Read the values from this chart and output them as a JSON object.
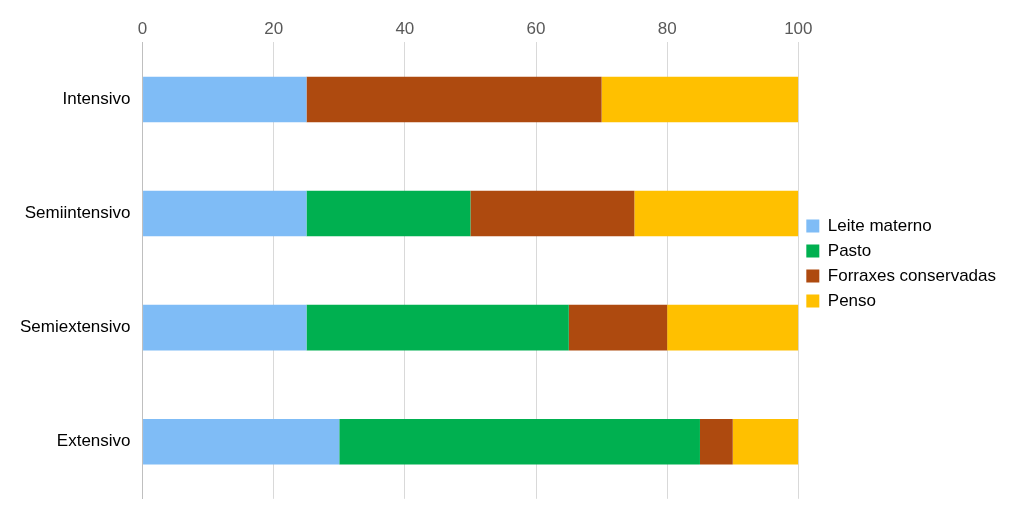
{
  "chart_data": {
    "type": "bar",
    "orientation": "horizontal",
    "stacked": true,
    "categories": [
      "Intensivo",
      "Semiintensivo",
      "Semiextensivo",
      "Extensivo"
    ],
    "series": [
      {
        "name": "Leite materno",
        "color": "#7fbcf6",
        "values": [
          25,
          25,
          25,
          30
        ]
      },
      {
        "name": "Pasto",
        "color": "#00b050",
        "values": [
          0,
          25,
          40,
          55
        ]
      },
      {
        "name": "Forraxes conservadas",
        "color": "#ae4a0f",
        "values": [
          45,
          25,
          15,
          5
        ]
      },
      {
        "name": "Penso",
        "color": "#ffc000",
        "values": [
          30,
          25,
          20,
          10
        ]
      }
    ],
    "xlim": [
      0,
      100
    ],
    "xticks": [
      0,
      20,
      40,
      60,
      80,
      100
    ],
    "grid": "x",
    "legend": "right"
  }
}
